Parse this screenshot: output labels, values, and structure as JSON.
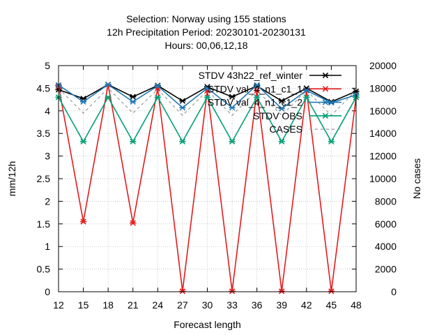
{
  "chart_data": {
    "type": "line",
    "title_lines": [
      "Selection: Norway using   155 stations",
      "12h Precipitation    Period: 20230101-20230131",
      "Hours:  00,06,12,18"
    ],
    "xlabel": "Forecast length",
    "ylabel": "mm/12h",
    "y2label": "No cases",
    "x": [
      12,
      15,
      18,
      21,
      24,
      27,
      30,
      33,
      36,
      39,
      42,
      45,
      48
    ],
    "xlim": [
      12,
      48
    ],
    "ylim": [
      0,
      5
    ],
    "y2lim": [
      0,
      20000
    ],
    "yticks": [
      "0",
      "0.5",
      "1",
      "1.5",
      "2",
      "2.5",
      "3",
      "3.5",
      "4",
      "4.5",
      "5"
    ],
    "y2ticks": [
      "0",
      "2000",
      "4000",
      "6000",
      "8000",
      "10000",
      "12000",
      "14000",
      "16000",
      "18000",
      "20000"
    ],
    "grid": true,
    "legend_position": "top-right",
    "series": [
      {
        "name": "STDV 43h22_ref_winter",
        "color": "#000000",
        "axis": "y",
        "values": [
          4.47,
          4.27,
          4.58,
          4.31,
          4.56,
          4.22,
          4.53,
          4.31,
          4.55,
          4.22,
          4.5,
          4.2,
          4.43
        ]
      },
      {
        "name": "STDV val_4_n1_c1_1",
        "color": "#e41a1c",
        "axis": "y",
        "values": [
          4.55,
          1.55,
          4.58,
          1.52,
          4.5,
          0.01,
          4.45,
          0.01,
          4.45,
          0.01,
          4.45,
          0.01,
          4.3
        ]
      },
      {
        "name": "STDV val_4_n1_c1_2",
        "color": "#1f78b4",
        "axis": "y",
        "values": [
          4.57,
          4.2,
          4.58,
          4.2,
          4.55,
          4.07,
          4.5,
          4.07,
          4.57,
          4.05,
          4.45,
          4.18,
          4.35
        ]
      },
      {
        "name": "STDV OBS",
        "color": "#009e73",
        "axis": "y",
        "values": [
          4.3,
          3.32,
          4.3,
          3.32,
          4.3,
          3.32,
          4.3,
          3.32,
          4.3,
          3.32,
          4.3,
          3.32,
          4.3
        ]
      },
      {
        "name": "CASES",
        "color": "#a0a0a0",
        "axis": "y2",
        "dashed": true,
        "values": [
          18000,
          15800,
          18000,
          15800,
          17900,
          15600,
          17800,
          15600,
          17800,
          15600,
          17800,
          15600,
          17800
        ]
      }
    ]
  }
}
